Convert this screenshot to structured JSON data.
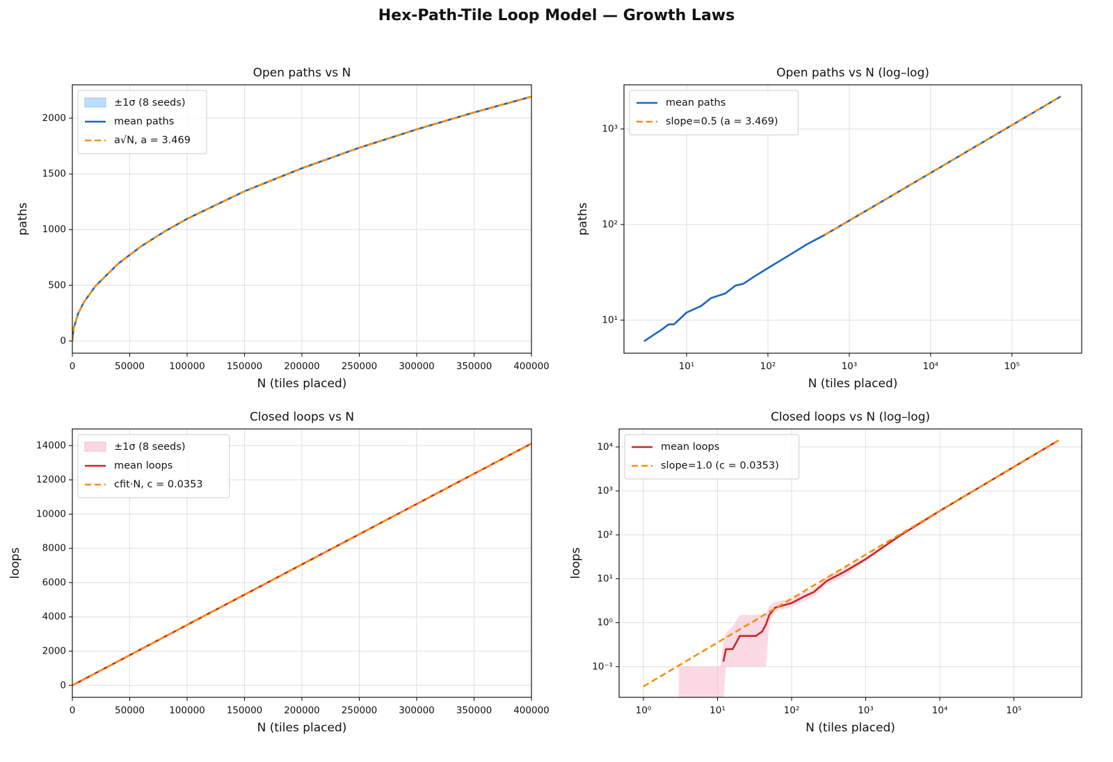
{
  "title": "Hex-Path-Tile Loop Model — Growth Laws",
  "chart_data": [
    {
      "type": "line",
      "title": "Open paths vs N",
      "xlabel": "N  (tiles placed)",
      "ylabel": "paths",
      "log": false,
      "grid": true,
      "legend": "upper left",
      "xlim": [
        0,
        400000
      ],
      "ylim": [
        -110,
        2300
      ],
      "xticks": [
        0,
        50000,
        100000,
        150000,
        200000,
        250000,
        300000,
        350000,
        400000
      ],
      "yticks": [
        0,
        500,
        1000,
        1500,
        2000
      ],
      "x": [
        0,
        1000,
        5000,
        10000,
        20000,
        40000,
        60000,
        80000,
        100000,
        150000,
        200000,
        250000,
        300000,
        350000,
        400000
      ],
      "series": [
        {
          "name": "±1σ  (8 seeds)",
          "kind": "band",
          "color": "#90caf9",
          "lower": [
            0,
            100,
            235,
            337,
            481,
            684,
            840,
            971,
            1087,
            1334,
            1541,
            1725,
            1890,
            2042,
            2184
          ],
          "upper": [
            0,
            120,
            255,
            357,
            501,
            704,
            860,
            991,
            1107,
            1354,
            1561,
            1745,
            1910,
            2062,
            2204
          ]
        },
        {
          "name": "mean paths",
          "kind": "line",
          "color": "#1565c0",
          "dash": false,
          "values": [
            0,
            110,
            245,
            347,
            491,
            694,
            850,
            981,
            1097,
            1344,
            1551,
            1735,
            1900,
            2052,
            2194
          ]
        },
        {
          "name": "a√N,  a = 3.469",
          "kind": "line",
          "color": "#ff8c00",
          "dash": true,
          "values": [
            0,
            110,
            245,
            347,
            491,
            694,
            850,
            981,
            1097,
            1344,
            1551,
            1735,
            1900,
            2052,
            2194
          ]
        }
      ]
    },
    {
      "type": "line",
      "title": "Open paths vs N  (log–log)",
      "xlabel": "N  (tiles placed)",
      "ylabel": "paths",
      "log": true,
      "grid": true,
      "legend": "upper left",
      "xlim": [
        1.7,
        720000
      ],
      "ylim": [
        4.5,
        2900
      ],
      "xticks": [
        {
          "value": 10,
          "label": "10¹"
        },
        {
          "value": 100,
          "label": "10²"
        },
        {
          "value": 1000,
          "label": "10³"
        },
        {
          "value": 10000,
          "label": "10⁴"
        },
        {
          "value": 100000,
          "label": "10⁵"
        }
      ],
      "yticks": [
        {
          "value": 10,
          "label": "10¹"
        },
        {
          "value": 100,
          "label": "10²"
        },
        {
          "value": 1000,
          "label": "10³"
        }
      ],
      "x": [
        3,
        5,
        6,
        7,
        10,
        15,
        20,
        30,
        40,
        50,
        70,
        100,
        200,
        300,
        500,
        1000,
        3000,
        10000,
        30000,
        100000,
        400000
      ],
      "series": [
        {
          "name": "mean paths",
          "kind": "line",
          "color": "#1565c0",
          "dash": false,
          "values": [
            6,
            8,
            9,
            9,
            12,
            14,
            17,
            19,
            23,
            24,
            29,
            35,
            50,
            62,
            78,
            110,
            190,
            347,
            601,
            1097,
            2194
          ]
        },
        {
          "name": "slope=0.5  (a = 3.469)",
          "kind": "line",
          "color": "#ff8c00",
          "dash": true,
          "values": [
            null,
            null,
            null,
            null,
            null,
            null,
            null,
            null,
            null,
            null,
            null,
            null,
            null,
            null,
            78,
            110,
            190,
            347,
            601,
            1097,
            2194
          ]
        }
      ]
    },
    {
      "type": "line",
      "title": "Closed loops vs N",
      "xlabel": "N  (tiles placed)",
      "ylabel": "loops",
      "log": false,
      "grid": true,
      "legend": "upper left",
      "xlim": [
        0,
        400000
      ],
      "ylim": [
        -700,
        14970
      ],
      "xticks": [
        0,
        50000,
        100000,
        150000,
        200000,
        250000,
        300000,
        350000,
        400000
      ],
      "yticks": [
        0,
        2000,
        4000,
        6000,
        8000,
        10000,
        12000,
        14000
      ],
      "x": [
        0,
        50000,
        100000,
        150000,
        200000,
        250000,
        300000,
        350000,
        400000
      ],
      "series": [
        {
          "name": "±1σ  (8 seeds)",
          "kind": "band",
          "color": "#f8bbd0",
          "lower": [
            0,
            1735,
            3500,
            5265,
            7030,
            8795,
            10560,
            12325,
            14090
          ],
          "upper": [
            0,
            1795,
            3560,
            5325,
            7090,
            8855,
            10620,
            12385,
            14150
          ]
        },
        {
          "name": "mean loops",
          "kind": "line",
          "color": "#c62828",
          "dash": false,
          "values": [
            0,
            1765,
            3530,
            5295,
            7060,
            8825,
            10590,
            12355,
            14120
          ]
        },
        {
          "name": "cfit·N,  c = 0.0353",
          "kind": "line",
          "color": "#ff8c00",
          "dash": true,
          "values": [
            0,
            1765,
            3530,
            5295,
            7060,
            8825,
            10590,
            12355,
            14120
          ]
        }
      ]
    },
    {
      "type": "line",
      "title": "Closed loops vs N  (log–log)",
      "xlabel": "N  (tiles placed)",
      "ylabel": "loops",
      "log": true,
      "grid": true,
      "legend": "upper left",
      "xlim": [
        0.47,
        822000
      ],
      "ylim": [
        0.02,
        25700
      ],
      "xticks": [
        {
          "value": 1,
          "label": "10⁰"
        },
        {
          "value": 10,
          "label": "10¹"
        },
        {
          "value": 100,
          "label": "10²"
        },
        {
          "value": 1000,
          "label": "10³"
        },
        {
          "value": 10000,
          "label": "10⁴"
        },
        {
          "value": 100000,
          "label": "10⁵"
        }
      ],
      "yticks": [
        {
          "value": 0.1,
          "label": "10⁻¹"
        },
        {
          "value": 1,
          "label": "10⁰"
        },
        {
          "value": 10,
          "label": "10¹"
        },
        {
          "value": 100,
          "label": "10²"
        },
        {
          "value": 1000,
          "label": "10³"
        },
        {
          "value": 10000,
          "label": "10⁴"
        }
      ],
      "x": [
        1,
        3,
        5,
        8,
        11,
        12,
        13,
        16,
        20,
        25,
        33,
        40,
        45,
        50,
        60,
        100,
        150,
        200,
        300,
        500,
        1000,
        3000,
        10000,
        100000,
        400000
      ],
      "series": [
        {
          "name": "±1σ  (8 seeds)",
          "kind": "band",
          "color": "#f8bbd0",
          "legend": false,
          "lower": [
            null,
            0,
            0,
            0,
            0,
            0,
            0.1,
            0.1,
            0.1,
            0.1,
            0.1,
            0.1,
            0.1,
            1,
            1.8,
            2.3,
            3.2,
            4,
            7.5,
            11,
            25,
            92,
            330,
            3460,
            13940
          ],
          "upper": [
            null,
            0.1,
            0.1,
            0.1,
            0.1,
            0.4,
            0.6,
            0.8,
            1.5,
            1.5,
            1.5,
            1.5,
            1.5,
            2.5,
            3,
            3.5,
            5,
            6,
            11,
            17,
            31,
            108,
            370,
            3600,
            14300
          ]
        },
        {
          "name": "mean loops",
          "kind": "line",
          "color": "#c62828",
          "dash": false,
          "values": [
            null,
            null,
            null,
            null,
            null,
            0.13,
            0.25,
            0.25,
            0.5,
            0.5,
            0.5,
            0.63,
            0.9,
            1.5,
            2.2,
            2.8,
            4,
            5,
            9,
            14,
            28,
            100,
            350,
            3530,
            14120
          ]
        },
        {
          "name": "slope=1.0  (c = 0.0353)",
          "kind": "line",
          "color": "#ff8c00",
          "dash": true,
          "values": [
            0.0353,
            0.106,
            0.177,
            0.282,
            0.388,
            0.424,
            0.459,
            0.565,
            0.706,
            0.883,
            1.16,
            1.41,
            1.59,
            1.77,
            2.12,
            3.53,
            5.3,
            7.06,
            10.6,
            17.7,
            35.3,
            106,
            353,
            3530,
            14120
          ]
        }
      ]
    }
  ]
}
